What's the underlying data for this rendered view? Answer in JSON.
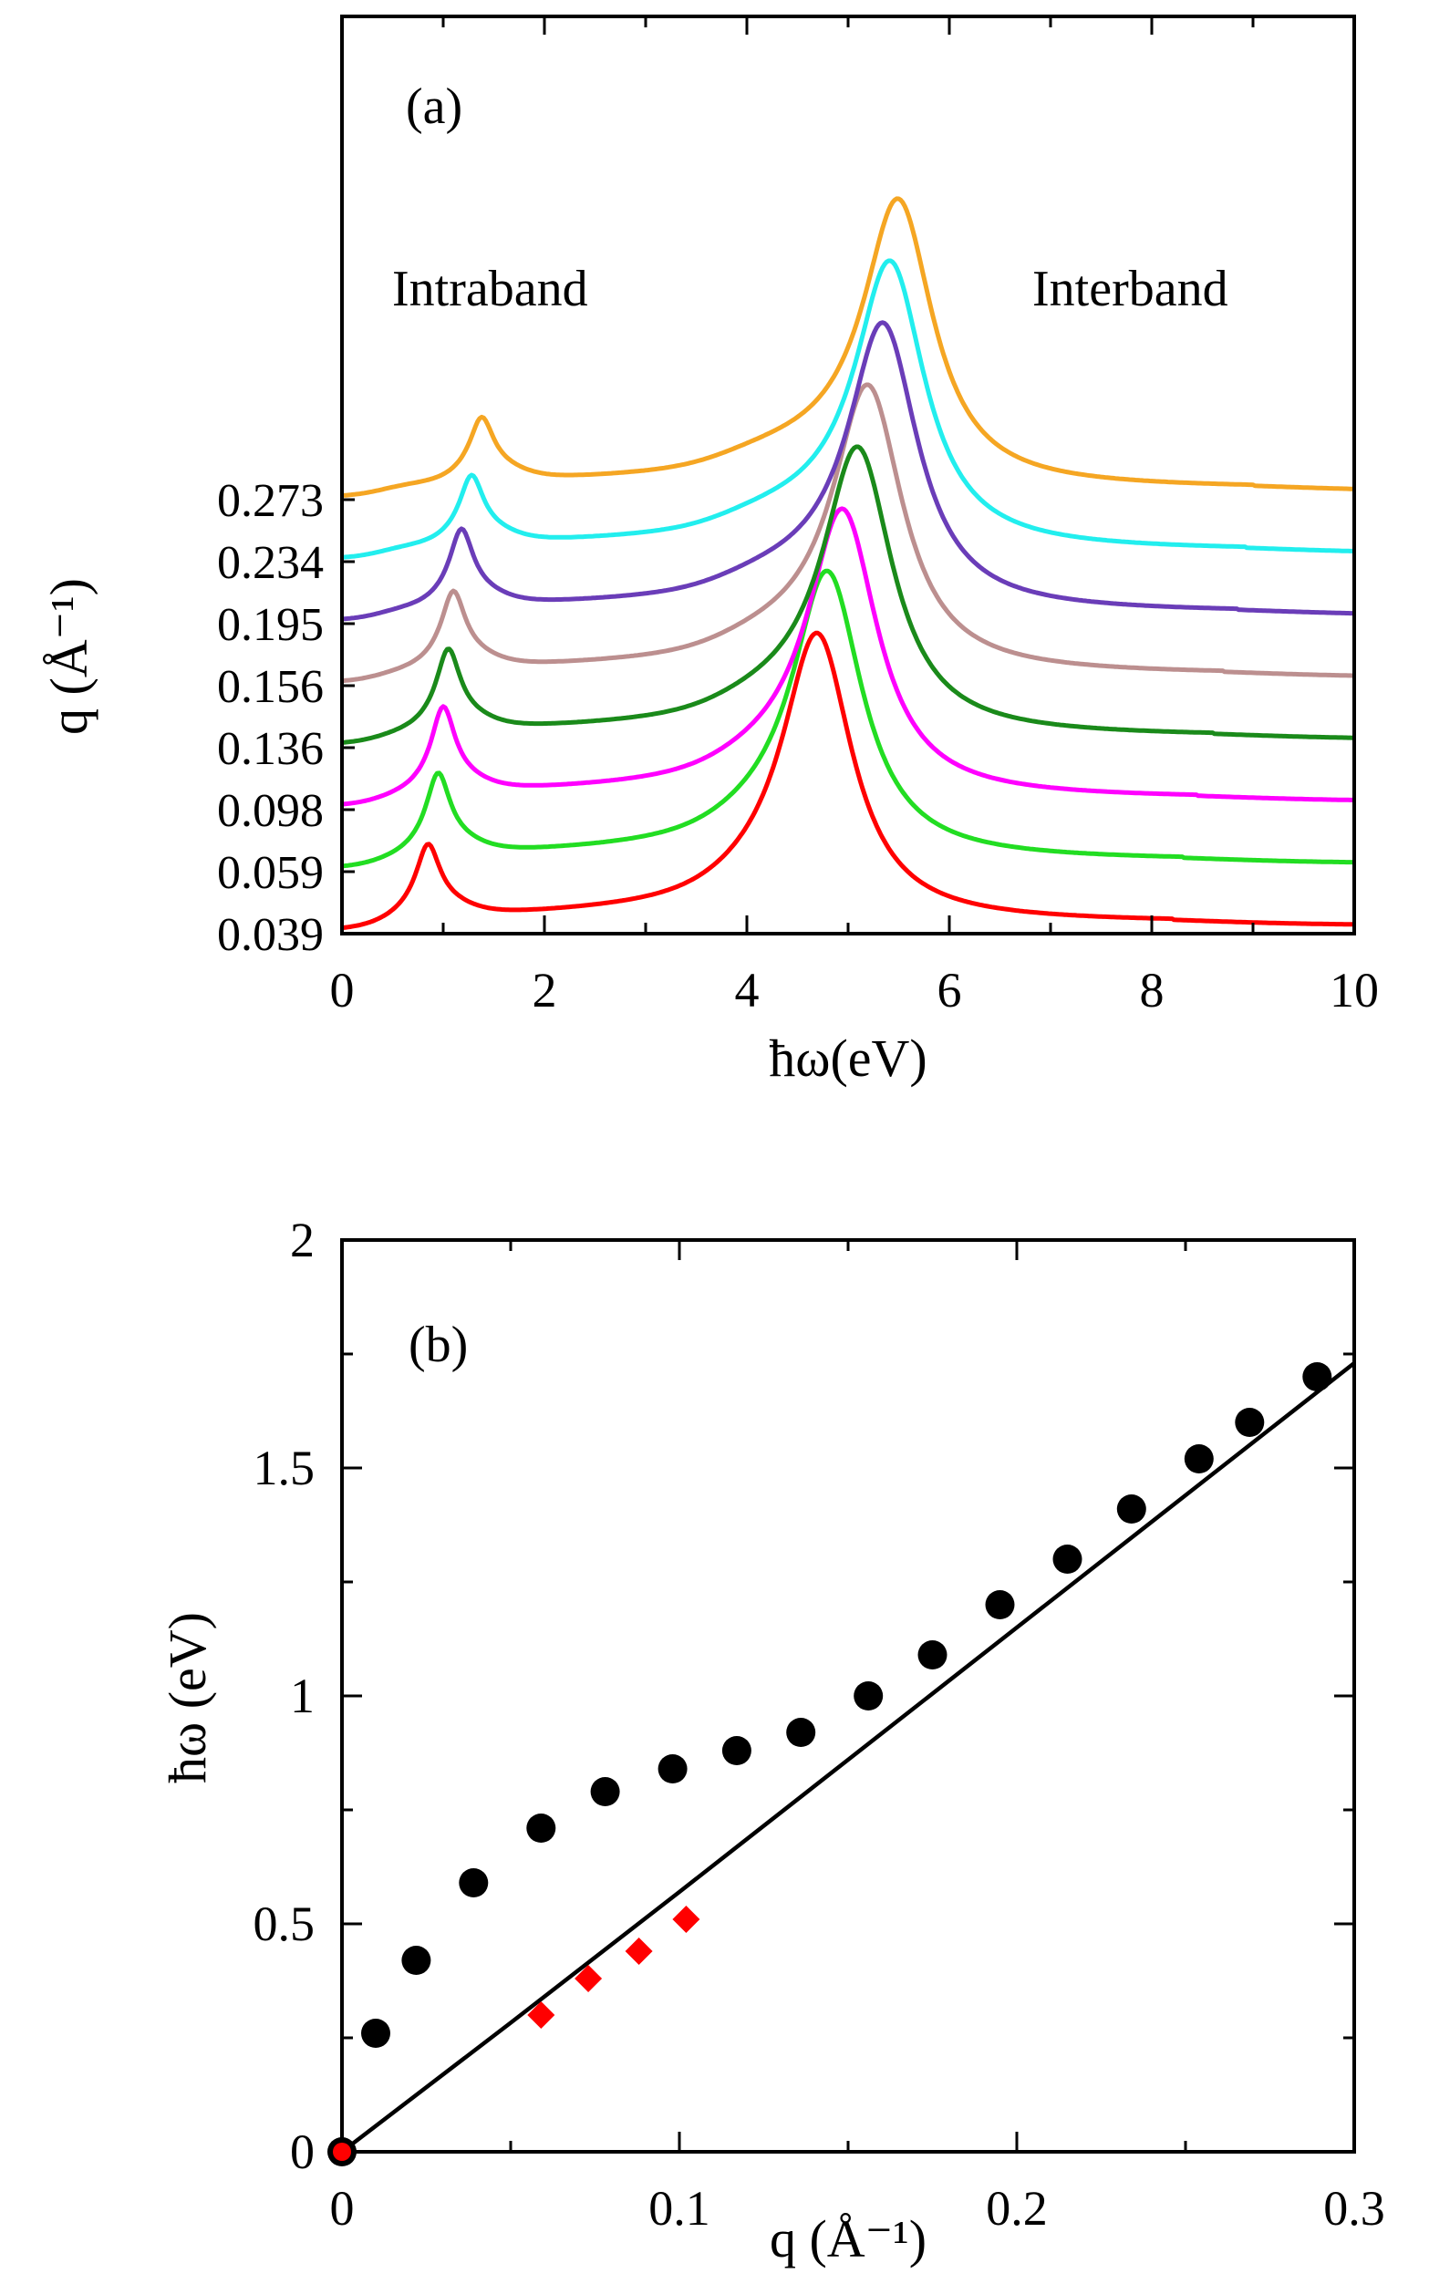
{
  "chart_data": [
    {
      "panel_label": "(a)",
      "type": "line",
      "xlabel": "ħω(eV)",
      "xlim": [
        0,
        10
      ],
      "x_ticks": [
        "0",
        "2",
        "4",
        "6",
        "8",
        "10"
      ],
      "ylabel": "q (Å⁻¹)",
      "annotations": [
        "Intraband",
        "Interband"
      ],
      "grid": false,
      "series": [
        {
          "q_label": "0.039",
          "color": "#ff0000",
          "offset": 0,
          "intra_peak": [
            0.85,
            70
          ],
          "inter_peak": [
            4.7,
            305
          ]
        },
        {
          "q_label": "0.059",
          "color": "#22dd22",
          "offset": 68,
          "intra_peak": [
            0.95,
            80
          ],
          "inter_peak": [
            4.8,
            305
          ]
        },
        {
          "q_label": "0.098",
          "color": "#ff00ff",
          "offset": 136,
          "intra_peak": [
            1.0,
            85
          ],
          "inter_peak": [
            4.95,
            305
          ]
        },
        {
          "q_label": "0.136",
          "color": "#1a8a1a",
          "offset": 204,
          "intra_peak": [
            1.05,
            80
          ],
          "inter_peak": [
            5.1,
            305
          ]
        },
        {
          "q_label": "0.156",
          "color": "#bc8f8f",
          "offset": 272,
          "intra_peak": [
            1.1,
            75
          ],
          "inter_peak": [
            5.2,
            305
          ]
        },
        {
          "q_label": "0.195",
          "color": "#6a3db8",
          "offset": 340,
          "intra_peak": [
            1.18,
            75
          ],
          "inter_peak": [
            5.35,
            305
          ]
        },
        {
          "q_label": "0.234",
          "color": "#22eeee",
          "offset": 408,
          "intra_peak": [
            1.28,
            65
          ],
          "inter_peak": [
            5.42,
            305
          ]
        },
        {
          "q_label": "0.273",
          "color": "#f5a623",
          "offset": 476,
          "intra_peak": [
            1.38,
            60
          ],
          "inter_peak": [
            5.5,
            305
          ]
        }
      ]
    },
    {
      "panel_label": "(b)",
      "type": "scatter",
      "xlabel": "q (Å⁻¹)",
      "ylabel": "ħω (eV)",
      "xlim": [
        0,
        0.3
      ],
      "ylim": [
        0,
        2
      ],
      "x_ticks": [
        "0",
        "0.1",
        "0.2",
        "0.3"
      ],
      "y_ticks": [
        "0",
        "0.5",
        "1",
        "1.5",
        "2"
      ],
      "grid": false,
      "series": [
        {
          "marker": "circle",
          "color": "#000000",
          "x": [
            0,
            0.01,
            0.022,
            0.039,
            0.059,
            0.078,
            0.098,
            0.117,
            0.136,
            0.156,
            0.175,
            0.195,
            0.215,
            0.234,
            0.254,
            0.269,
            0.289
          ],
          "y": [
            0,
            0.26,
            0.42,
            0.59,
            0.71,
            0.79,
            0.84,
            0.88,
            0.92,
            1.0,
            1.09,
            1.2,
            1.3,
            1.41,
            1.52,
            1.6,
            1.7
          ]
        },
        {
          "marker": "diamond",
          "color": "#ff0000",
          "x": [
            0,
            0.059,
            0.073,
            0.088,
            0.102
          ],
          "y": [
            0,
            0.3,
            0.38,
            0.44,
            0.51
          ]
        },
        {
          "marker": "line",
          "color": "#000000",
          "x": [
            0,
            0.05,
            0.1,
            0.15,
            0.2,
            0.25,
            0.3
          ],
          "y": [
            0,
            0.283,
            0.57,
            0.86,
            1.15,
            1.44,
            1.73
          ]
        }
      ]
    }
  ]
}
